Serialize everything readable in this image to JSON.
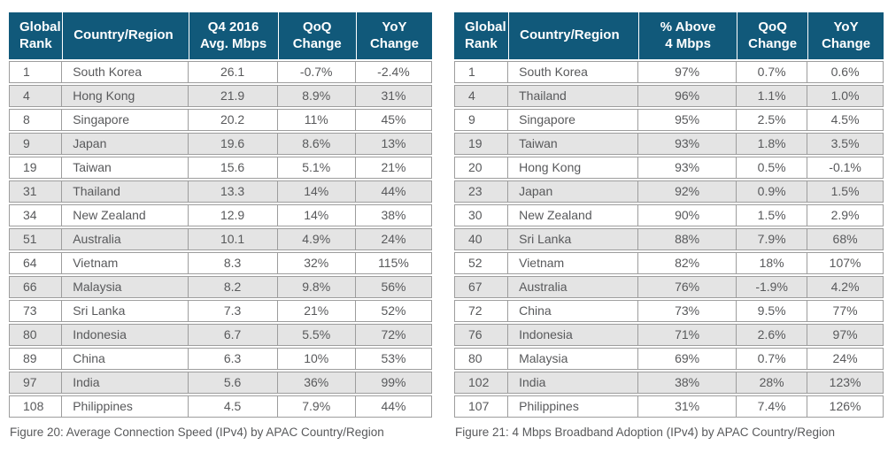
{
  "colors": {
    "header_bg": "#11597a",
    "header_text": "#ffffff",
    "row_bg": "#ffffff",
    "row_alt_bg": "#e4e4e4",
    "border": "#9d9d9d",
    "text": "#58595b"
  },
  "tables": [
    {
      "id": "figure-20-avg-connection-speed",
      "headers": [
        "Global\nRank",
        "Country/Region",
        "Q4 2016\nAvg. Mbps",
        "QoQ\nChange",
        "YoY\nChange"
      ],
      "rows": [
        [
          "1",
          "South Korea",
          "26.1",
          "-0.7%",
          "-2.4%"
        ],
        [
          "4",
          "Hong Kong",
          "21.9",
          "8.9%",
          "31%"
        ],
        [
          "8",
          "Singapore",
          "20.2",
          "11%",
          "45%"
        ],
        [
          "9",
          "Japan",
          "19.6",
          "8.6%",
          "13%"
        ],
        [
          "19",
          "Taiwan",
          "15.6",
          "5.1%",
          "21%"
        ],
        [
          "31",
          "Thailand",
          "13.3",
          "14%",
          "44%"
        ],
        [
          "34",
          "New Zealand",
          "12.9",
          "14%",
          "38%"
        ],
        [
          "51",
          "Australia",
          "10.1",
          "4.9%",
          "24%"
        ],
        [
          "64",
          "Vietnam",
          "8.3",
          "32%",
          "115%"
        ],
        [
          "66",
          "Malaysia",
          "8.2",
          "9.8%",
          "56%"
        ],
        [
          "73",
          "Sri Lanka",
          "7.3",
          "21%",
          "52%"
        ],
        [
          "80",
          "Indonesia",
          "6.7",
          "5.5%",
          "72%"
        ],
        [
          "89",
          "China",
          "6.3",
          "10%",
          "53%"
        ],
        [
          "97",
          "India",
          "5.6",
          "36%",
          "99%"
        ],
        [
          "108",
          "Philippines",
          "4.5",
          "7.9%",
          "44%"
        ]
      ],
      "caption": "Figure 20: Average Connection Speed (IPv4) by APAC Country/Region"
    },
    {
      "id": "figure-21-4mbps-broadband-adoption",
      "headers": [
        "Global\nRank",
        "Country/Region",
        "% Above\n4 Mbps",
        "QoQ\nChange",
        "YoY\nChange"
      ],
      "rows": [
        [
          "1",
          "South Korea",
          "97%",
          "0.7%",
          "0.6%"
        ],
        [
          "4",
          "Thailand",
          "96%",
          "1.1%",
          "1.0%"
        ],
        [
          "9",
          "Singapore",
          "95%",
          "2.5%",
          "4.5%"
        ],
        [
          "19",
          "Taiwan",
          "93%",
          "1.8%",
          "3.5%"
        ],
        [
          "20",
          "Hong Kong",
          "93%",
          "0.5%",
          "-0.1%"
        ],
        [
          "23",
          "Japan",
          "92%",
          "0.9%",
          "1.5%"
        ],
        [
          "30",
          "New Zealand",
          "90%",
          "1.5%",
          "2.9%"
        ],
        [
          "40",
          "Sri Lanka",
          "88%",
          "7.9%",
          "68%"
        ],
        [
          "52",
          "Vietnam",
          "82%",
          "18%",
          "107%"
        ],
        [
          "67",
          "Australia",
          "76%",
          "-1.9%",
          "4.2%"
        ],
        [
          "72",
          "China",
          "73%",
          "9.5%",
          "77%"
        ],
        [
          "76",
          "Indonesia",
          "71%",
          "2.6%",
          "97%"
        ],
        [
          "80",
          "Malaysia",
          "69%",
          "0.7%",
          "24%"
        ],
        [
          "102",
          "India",
          "38%",
          "28%",
          "123%"
        ],
        [
          "107",
          "Philippines",
          "31%",
          "7.4%",
          "126%"
        ]
      ],
      "caption": "Figure 21: 4 Mbps Broadband Adoption (IPv4) by APAC Country/Region"
    }
  ]
}
